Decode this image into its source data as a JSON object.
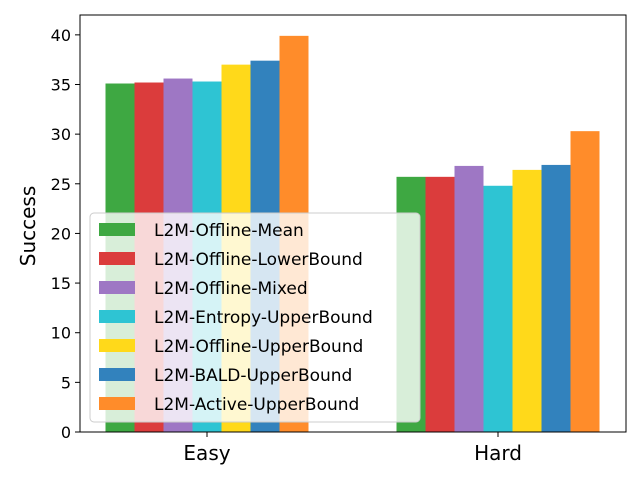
{
  "chart_data": {
    "type": "bar",
    "categories": [
      "Easy",
      "Hard"
    ],
    "series": [
      {
        "name": "L2M-Offline-Mean",
        "values": [
          35.1,
          25.7
        ],
        "color": "#3ea842"
      },
      {
        "name": "L2M-Offline-LowerBound",
        "values": [
          35.2,
          25.7
        ],
        "color": "#db3c3c"
      },
      {
        "name": "L2M-Offline-Mixed",
        "values": [
          35.6,
          26.8
        ],
        "color": "#9e77c4"
      },
      {
        "name": "L2M-Entropy-UpperBound",
        "values": [
          35.3,
          24.8
        ],
        "color": "#2ec4d3"
      },
      {
        "name": "L2M-Offline-UpperBound",
        "values": [
          37.0,
          26.4
        ],
        "color": "#ffd91a"
      },
      {
        "name": "L2M-BALD-UpperBound",
        "values": [
          37.4,
          26.9
        ],
        "color": "#3282bd"
      },
      {
        "name": "L2M-Active-UpperBound",
        "values": [
          39.9,
          30.3
        ],
        "color": "#ff8c2a"
      }
    ],
    "xlabel": "",
    "ylabel": "Success",
    "ylim": [
      0,
      42
    ],
    "yticks": [
      0,
      5,
      10,
      15,
      20,
      25,
      30,
      35,
      40
    ],
    "grid": false,
    "legend_position": "lower-left"
  }
}
